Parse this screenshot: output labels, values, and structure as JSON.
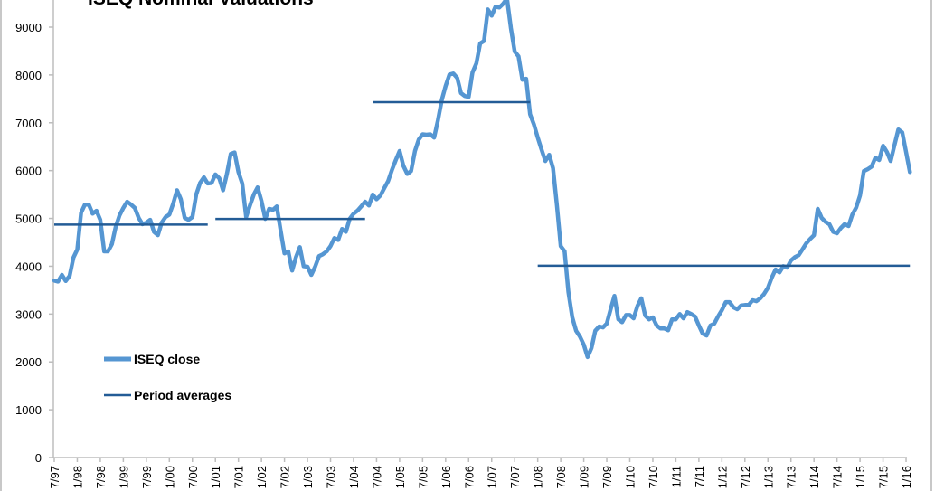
{
  "chart_data": {
    "type": "line",
    "title": "ISEQ Nominal Valuations",
    "xlabel": "",
    "ylabel": "",
    "ylim": [
      0,
      9000
    ],
    "y_ticks": [
      0,
      1000,
      2000,
      3000,
      4000,
      5000,
      6000,
      7000,
      8000,
      9000
    ],
    "x_tick_labels": [
      "7/97",
      "1/98",
      "7/98",
      "1/99",
      "7/99",
      "1/00",
      "7/00",
      "1/01",
      "7/01",
      "1/02",
      "7/02",
      "1/03",
      "7/03",
      "1/04",
      "7/04",
      "1/05",
      "7/05",
      "1/06",
      "7/06",
      "1/07",
      "7/07",
      "1/08",
      "7/08",
      "1/09",
      "7/09",
      "1/10",
      "7/10",
      "1/11",
      "7/11",
      "1/12",
      "7/12",
      "1/13",
      "7/13",
      "1/14",
      "7/14",
      "1/15",
      "7/15",
      "1/16"
    ],
    "grid": false,
    "legend_position": "left",
    "colors": {
      "ISEQ close": "#5596d2",
      "Period averages": "#235c96"
    },
    "series": [
      {
        "name": "ISEQ close",
        "x": [
          "1997-07",
          "1997-08",
          "1997-09",
          "1997-10",
          "1997-11",
          "1997-12",
          "1998-01",
          "1998-02",
          "1998-03",
          "1998-04",
          "1998-05",
          "1998-06",
          "1998-07",
          "1998-08",
          "1998-09",
          "1998-10",
          "1998-11",
          "1998-12",
          "1999-01",
          "1999-02",
          "1999-03",
          "1999-04",
          "1999-05",
          "1999-06",
          "1999-07",
          "1999-08",
          "1999-09",
          "1999-10",
          "1999-11",
          "1999-12",
          "2000-01",
          "2000-02",
          "2000-03",
          "2000-04",
          "2000-05",
          "2000-06",
          "2000-07",
          "2000-08",
          "2000-09",
          "2000-10",
          "2000-11",
          "2000-12",
          "2001-01",
          "2001-02",
          "2001-03",
          "2001-04",
          "2001-05",
          "2001-06",
          "2001-07",
          "2001-08",
          "2001-09",
          "2001-10",
          "2001-11",
          "2001-12",
          "2002-01",
          "2002-02",
          "2002-03",
          "2002-04",
          "2002-05",
          "2002-06",
          "2002-07",
          "2002-08",
          "2002-09",
          "2002-10",
          "2002-11",
          "2002-12",
          "2003-01",
          "2003-02",
          "2003-03",
          "2003-04",
          "2003-05",
          "2003-06",
          "2003-07",
          "2003-08",
          "2003-09",
          "2003-10",
          "2003-11",
          "2003-12",
          "2004-01",
          "2004-02",
          "2004-03",
          "2004-04",
          "2004-05",
          "2004-06",
          "2004-07",
          "2004-08",
          "2004-09",
          "2004-10",
          "2004-11",
          "2004-12",
          "2005-01",
          "2005-02",
          "2005-03",
          "2005-04",
          "2005-05",
          "2005-06",
          "2005-07",
          "2005-08",
          "2005-09",
          "2005-10",
          "2005-11",
          "2005-12",
          "2006-01",
          "2006-02",
          "2006-03",
          "2006-04",
          "2006-05",
          "2006-06",
          "2006-07",
          "2006-08",
          "2006-09",
          "2006-10",
          "2006-11",
          "2006-12",
          "2007-01",
          "2007-02",
          "2007-03",
          "2007-04",
          "2007-05",
          "2007-06",
          "2007-07",
          "2007-08",
          "2007-09",
          "2007-10",
          "2007-11",
          "2007-12",
          "2008-01",
          "2008-02",
          "2008-03",
          "2008-04",
          "2008-05",
          "2008-06",
          "2008-07",
          "2008-08",
          "2008-09",
          "2008-10",
          "2008-11",
          "2008-12",
          "2009-01",
          "2009-02",
          "2009-03",
          "2009-04",
          "2009-05",
          "2009-06",
          "2009-07",
          "2009-08",
          "2009-09",
          "2009-10",
          "2009-11",
          "2009-12",
          "2010-01",
          "2010-02",
          "2010-03",
          "2010-04",
          "2010-05",
          "2010-06",
          "2010-07",
          "2010-08",
          "2010-09",
          "2010-10",
          "2010-11",
          "2010-12",
          "2011-01",
          "2011-02",
          "2011-03",
          "2011-04",
          "2011-05",
          "2011-06",
          "2011-07",
          "2011-08",
          "2011-09",
          "2011-10",
          "2011-11",
          "2011-12",
          "2012-01",
          "2012-02",
          "2012-03",
          "2012-04",
          "2012-05",
          "2012-06",
          "2012-07",
          "2012-08",
          "2012-09",
          "2012-10",
          "2012-11",
          "2012-12",
          "2013-01",
          "2013-02",
          "2013-03",
          "2013-04",
          "2013-05",
          "2013-06",
          "2013-07",
          "2013-08",
          "2013-09",
          "2013-10",
          "2013-11",
          "2013-12",
          "2014-01",
          "2014-02",
          "2014-03",
          "2014-04",
          "2014-05",
          "2014-06",
          "2014-07",
          "2014-08",
          "2014-09",
          "2014-10",
          "2014-11",
          "2014-12",
          "2015-01",
          "2015-02",
          "2015-03",
          "2015-04",
          "2015-05",
          "2015-06",
          "2015-07",
          "2015-08",
          "2015-09",
          "2015-10",
          "2015-11",
          "2015-12",
          "2016-01",
          "2016-02"
        ],
        "y": [
          3700,
          3680,
          3820,
          3690,
          3800,
          4180,
          4350,
          5120,
          5290,
          5290,
          5100,
          5160,
          4970,
          4310,
          4310,
          4460,
          4820,
          5060,
          5220,
          5350,
          5290,
          5220,
          5010,
          4880,
          4910,
          4970,
          4720,
          4650,
          4910,
          5030,
          5080,
          5310,
          5590,
          5400,
          5010,
          4970,
          5030,
          5500,
          5740,
          5860,
          5730,
          5740,
          5920,
          5840,
          5590,
          5930,
          6350,
          6380,
          5970,
          5730,
          5030,
          5270,
          5500,
          5650,
          5370,
          4990,
          5200,
          5180,
          5250,
          4740,
          4270,
          4310,
          3910,
          4190,
          4400,
          4000,
          3990,
          3820,
          3990,
          4210,
          4250,
          4310,
          4420,
          4590,
          4550,
          4780,
          4720,
          4990,
          5100,
          5160,
          5250,
          5350,
          5270,
          5500,
          5400,
          5480,
          5630,
          5780,
          6010,
          6220,
          6410,
          6100,
          5930,
          5990,
          6410,
          6650,
          6760,
          6750,
          6760,
          6690,
          7050,
          7480,
          7770,
          8010,
          8030,
          7940,
          7620,
          7560,
          7540,
          8050,
          8240,
          8660,
          8710,
          9370,
          9240,
          9430,
          9410,
          9490,
          9600,
          8980,
          8490,
          8390,
          7900,
          7920,
          7180,
          6970,
          6690,
          6440,
          6200,
          6330,
          6050,
          5270,
          4420,
          4310,
          3460,
          2930,
          2650,
          2530,
          2360,
          2100,
          2290,
          2650,
          2740,
          2720,
          2800,
          3100,
          3380,
          2890,
          2830,
          2980,
          2980,
          2910,
          3170,
          3330,
          2970,
          2890,
          2930,
          2760,
          2700,
          2700,
          2660,
          2890,
          2890,
          3000,
          2910,
          3040,
          3000,
          2950,
          2760,
          2590,
          2550,
          2760,
          2800,
          2950,
          3080,
          3250,
          3250,
          3140,
          3100,
          3180,
          3190,
          3190,
          3290,
          3270,
          3330,
          3420,
          3550,
          3760,
          3930,
          3870,
          4000,
          3970,
          4120,
          4190,
          4230,
          4350,
          4480,
          4570,
          4650,
          5200,
          5010,
          4930,
          4880,
          4720,
          4690,
          4800,
          4880,
          4840,
          5080,
          5230,
          5480,
          5990,
          6030,
          6080,
          6270,
          6220,
          6520,
          6390,
          6200,
          6540,
          6860,
          6800,
          6390,
          5970
        ]
      },
      {
        "name": "Period averages",
        "segments": [
          {
            "from": "1997-07",
            "to": "2000-11",
            "value": 4870
          },
          {
            "from": "2001-01",
            "to": "2004-04",
            "value": 4990
          },
          {
            "from": "2004-06",
            "to": "2007-11",
            "value": 7430
          },
          {
            "from": "2008-01",
            "to": "2016-02",
            "value": 4010
          }
        ]
      }
    ]
  },
  "legend": {
    "items": [
      {
        "label": "ISEQ close"
      },
      {
        "label": "Period averages"
      }
    ]
  }
}
